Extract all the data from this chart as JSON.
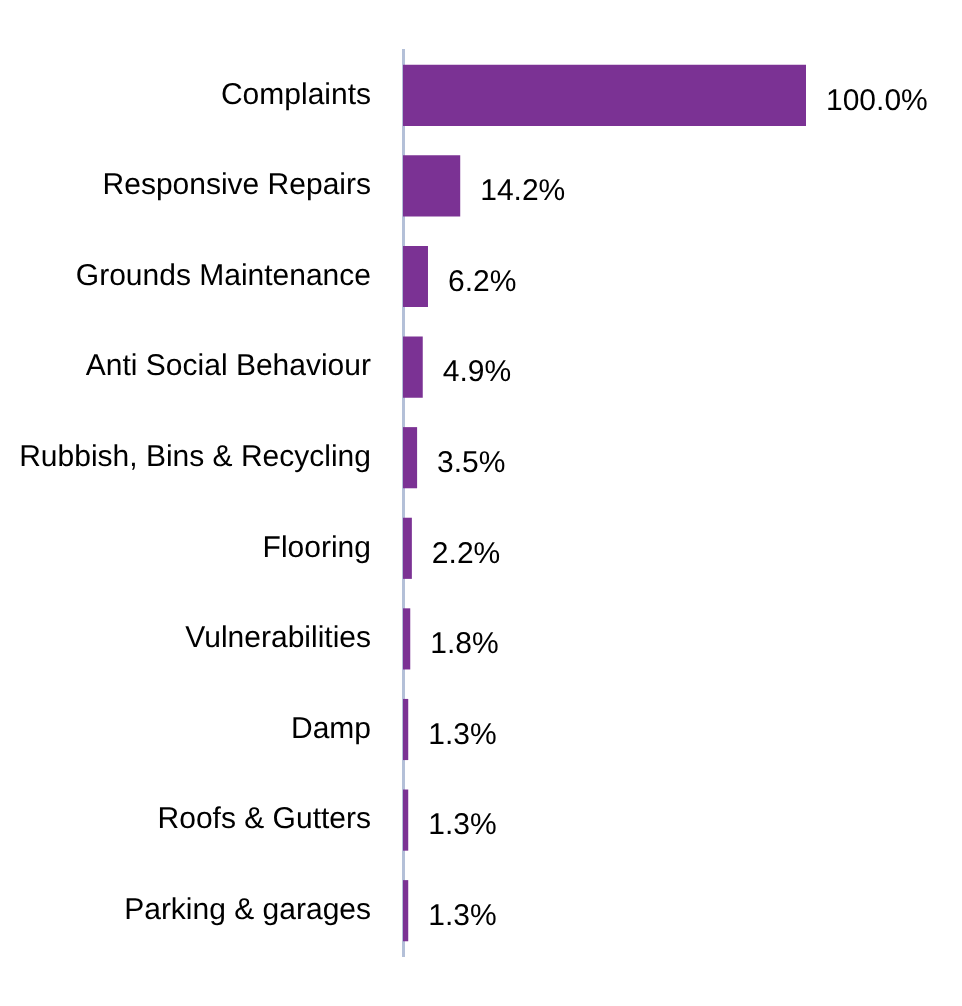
{
  "chart_data": {
    "type": "bar",
    "orientation": "horizontal",
    "categories": [
      "Complaints",
      "Responsive Repairs",
      "Grounds Maintenance",
      "Anti Social Behaviour",
      "Rubbish, Bins & Recycling",
      "Flooring",
      "Vulnerabilities",
      "Damp",
      "Roofs & Gutters",
      "Parking & garages"
    ],
    "values": [
      100.0,
      14.2,
      6.2,
      4.9,
      3.5,
      2.2,
      1.8,
      1.3,
      1.3,
      1.3
    ],
    "value_labels": [
      "100.0%",
      "14.2%",
      "6.2%",
      "4.9%",
      "3.5%",
      "2.2%",
      "1.8%",
      "1.3%",
      "1.3%",
      "1.3%"
    ],
    "color": "#7b3294",
    "tick_labels": "y"
  }
}
